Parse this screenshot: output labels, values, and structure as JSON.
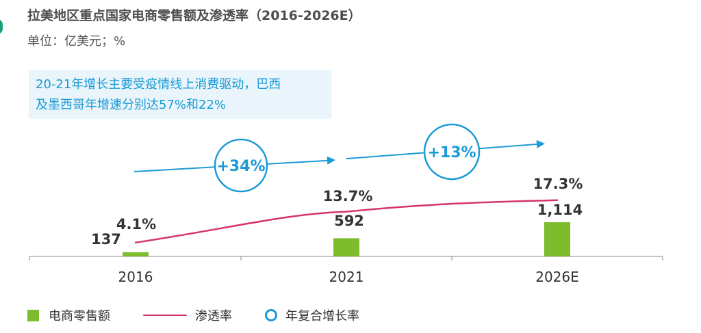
{
  "title": "拉美地区重点国家电商零售额及渗透率（2016-2026E）",
  "unit": "单位：亿美元；%",
  "callout": {
    "line1": "20-21年增长主要受疫情线上消费驱动，巴西",
    "line2": "及墨西哥年增速分别达57%和22%"
  },
  "colors": {
    "bar": "#7cbc2d",
    "line": "#d6336c",
    "cagr": "#1a9ad6",
    "axis": "#888888",
    "label": "#333333"
  },
  "chart_data": {
    "type": "bar",
    "categories": [
      "2016",
      "2021",
      "2026E"
    ],
    "series": [
      {
        "name": "电商零售额",
        "type": "bar",
        "values": [
          137,
          592,
          1114
        ],
        "labels": [
          "137",
          "592",
          "1,114"
        ]
      },
      {
        "name": "渗透率",
        "type": "line",
        "values": [
          4.1,
          13.7,
          17.3
        ],
        "labels": [
          "4.1%",
          "13.7%",
          "17.3%"
        ]
      }
    ],
    "cagr": [
      {
        "from": "2016",
        "to": "2021",
        "label": "+34%"
      },
      {
        "from": "2021",
        "to": "2026E",
        "label": "+13%"
      }
    ],
    "legend": [
      {
        "label": "电商零售额",
        "kind": "bar"
      },
      {
        "label": "渗透率",
        "kind": "line"
      },
      {
        "label": "年复合增长率",
        "kind": "circle"
      }
    ],
    "legend_position": "bottom-left",
    "grid": false
  }
}
